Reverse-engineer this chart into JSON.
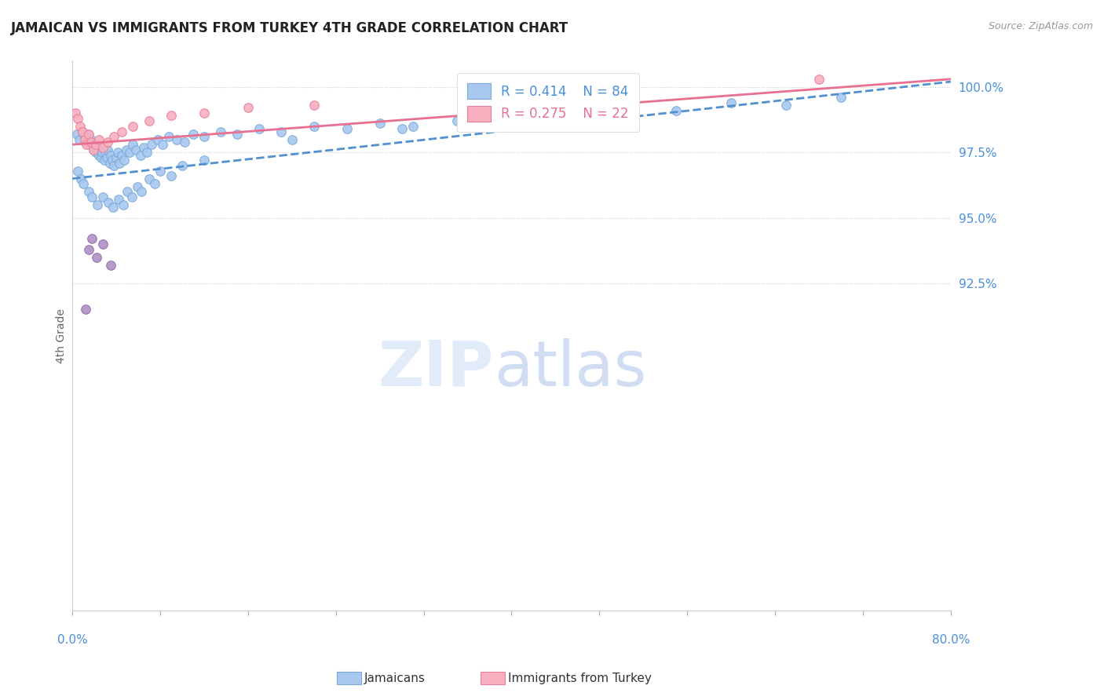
{
  "title": "JAMAICAN VS IMMIGRANTS FROM TURKEY 4TH GRADE CORRELATION CHART",
  "source": "Source: ZipAtlas.com",
  "ylabel": "4th Grade",
  "xmin": 0.0,
  "xmax": 80.0,
  "ymin": 80.0,
  "ymax": 101.0,
  "blue_R": 0.414,
  "blue_N": 84,
  "pink_R": 0.275,
  "pink_N": 22,
  "blue_face": "#a8c8f0",
  "blue_edge": "#7aaad8",
  "pink_face": "#f8b0c0",
  "pink_edge": "#e88098",
  "purple_face": "#b090c8",
  "purple_edge": "#9070a8",
  "blue_line": "#5090d0",
  "pink_line": "#e87090",
  "blue_label": "Jamaicans",
  "pink_label": "Immigrants from Turkey",
  "blue_scatter_x": [
    0.4,
    0.6,
    0.9,
    1.1,
    1.3,
    1.4,
    1.6,
    1.7,
    1.9,
    2.0,
    2.1,
    2.2,
    2.4,
    2.5,
    2.6,
    2.7,
    2.9,
    3.0,
    3.1,
    3.2,
    3.4,
    3.5,
    3.6,
    3.8,
    4.0,
    4.1,
    4.3,
    4.5,
    4.7,
    4.9,
    5.2,
    5.5,
    5.8,
    6.2,
    6.5,
    6.8,
    7.2,
    7.8,
    8.2,
    8.8,
    9.5,
    10.2,
    11.0,
    12.0,
    13.5,
    15.0,
    17.0,
    19.0,
    22.0,
    25.0,
    28.0,
    31.0,
    35.0,
    40.0,
    45.0,
    50.0,
    55.0,
    60.0,
    65.0,
    70.0,
    0.5,
    0.8,
    1.0,
    1.5,
    1.8,
    2.3,
    2.8,
    3.3,
    3.7,
    4.2,
    4.6,
    5.0,
    5.4,
    5.9,
    6.3,
    7.0,
    7.5,
    8.0,
    9.0,
    10.0,
    12.0,
    20.0,
    30.0,
    42.0
  ],
  "blue_scatter_y": [
    98.2,
    98.0,
    98.3,
    98.1,
    97.9,
    98.2,
    97.8,
    98.0,
    97.6,
    97.8,
    97.5,
    97.7,
    97.4,
    97.6,
    97.3,
    97.5,
    97.2,
    97.5,
    97.3,
    97.6,
    97.1,
    97.4,
    97.2,
    97.0,
    97.3,
    97.5,
    97.1,
    97.4,
    97.2,
    97.6,
    97.5,
    97.8,
    97.6,
    97.4,
    97.7,
    97.5,
    97.8,
    98.0,
    97.8,
    98.1,
    98.0,
    97.9,
    98.2,
    98.1,
    98.3,
    98.2,
    98.4,
    98.3,
    98.5,
    98.4,
    98.6,
    98.5,
    98.7,
    98.9,
    99.0,
    99.2,
    99.1,
    99.4,
    99.3,
    99.6,
    96.8,
    96.5,
    96.3,
    96.0,
    95.8,
    95.5,
    95.8,
    95.6,
    95.4,
    95.7,
    95.5,
    96.0,
    95.8,
    96.2,
    96.0,
    96.5,
    96.3,
    96.8,
    96.6,
    97.0,
    97.2,
    98.0,
    98.4,
    99.0
  ],
  "pink_scatter_x": [
    0.3,
    0.5,
    0.7,
    0.9,
    1.1,
    1.3,
    1.5,
    1.7,
    1.9,
    2.1,
    2.4,
    2.8,
    3.2,
    3.8,
    4.5,
    5.5,
    7.0,
    9.0,
    12.0,
    16.0,
    22.0,
    68.0
  ],
  "pink_scatter_y": [
    99.0,
    98.8,
    98.5,
    98.3,
    98.0,
    97.8,
    98.2,
    97.9,
    97.6,
    97.8,
    98.0,
    97.7,
    97.9,
    98.1,
    98.3,
    98.5,
    98.7,
    98.9,
    99.0,
    99.2,
    99.3,
    100.3
  ],
  "purple_scatter_x": [
    1.2,
    1.5,
    1.8,
    2.2,
    2.8,
    3.5
  ],
  "purple_scatter_y": [
    91.5,
    93.8,
    94.2,
    93.5,
    94.0,
    93.2
  ],
  "blue_trend_x": [
    0.0,
    80.0
  ],
  "blue_trend_y": [
    96.5,
    100.2
  ],
  "pink_trend_x": [
    0.0,
    80.0
  ],
  "pink_trend_y": [
    97.8,
    100.3
  ],
  "yticks": [
    100.0,
    97.5,
    95.0,
    92.5
  ],
  "ytick_labels": [
    "100.0%",
    "97.5%",
    "95.0%",
    "92.5%"
  ]
}
